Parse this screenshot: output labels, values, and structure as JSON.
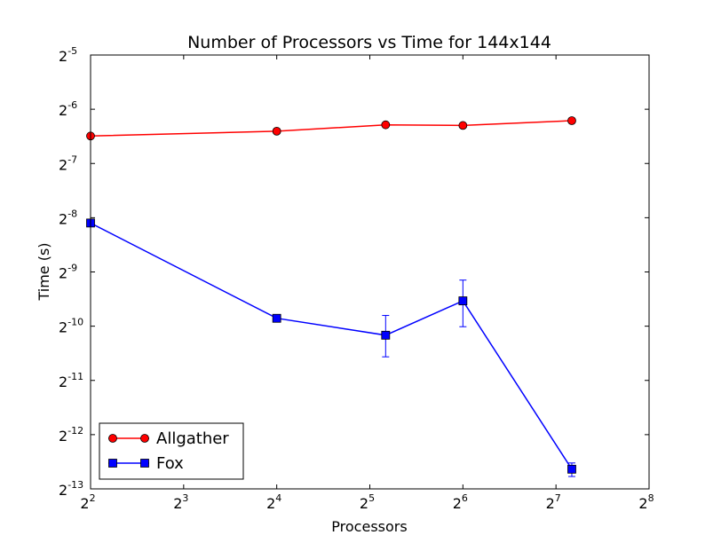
{
  "chart_data": {
    "type": "line",
    "title": "Number of Processors vs Time for 144x144",
    "xlabel": "Processors",
    "ylabel": "Time (s)",
    "x_scale": "log2",
    "y_scale": "log2",
    "xlim": [
      4,
      256
    ],
    "ylim": [
      0.0001220703125,
      0.03125
    ],
    "x_ticks": [
      {
        "value": 4,
        "base": "2",
        "exp": "2"
      },
      {
        "value": 8,
        "base": "2",
        "exp": "3"
      },
      {
        "value": 16,
        "base": "2",
        "exp": "4"
      },
      {
        "value": 32,
        "base": "2",
        "exp": "5"
      },
      {
        "value": 64,
        "base": "2",
        "exp": "6"
      },
      {
        "value": 128,
        "base": "2",
        "exp": "7"
      },
      {
        "value": 256,
        "base": "2",
        "exp": "8"
      }
    ],
    "y_ticks": [
      {
        "value": 0.03125,
        "base": "2",
        "exp": "-5"
      },
      {
        "value": 0.015625,
        "base": "2",
        "exp": "-6"
      },
      {
        "value": 0.0078125,
        "base": "2",
        "exp": "-7"
      },
      {
        "value": 0.00390625,
        "base": "2",
        "exp": "-8"
      },
      {
        "value": 0.001953125,
        "base": "2",
        "exp": "-9"
      },
      {
        "value": 0.0009765625,
        "base": "2",
        "exp": "-10"
      },
      {
        "value": 0.00048828125,
        "base": "2",
        "exp": "-11"
      },
      {
        "value": 0.000244140625,
        "base": "2",
        "exp": "-12"
      },
      {
        "value": 0.0001220703125,
        "base": "2",
        "exp": "-13"
      }
    ],
    "grid": false,
    "legend_position": "bottom-left",
    "x": [
      4,
      16,
      36,
      64,
      144
    ],
    "series": [
      {
        "name": "Allgather",
        "color": "#ff0000",
        "marker": "circle",
        "values": [
          0.0111,
          0.0118,
          0.0128,
          0.0127,
          0.0135
        ],
        "err_low": [
          0.0111,
          0.0118,
          0.0128,
          0.0127,
          0.0135
        ],
        "err_high": [
          0.0111,
          0.0118,
          0.0128,
          0.0127,
          0.0135
        ]
      },
      {
        "name": "Fox",
        "color": "#0000ff",
        "marker": "square",
        "values": [
          0.00365,
          0.00108,
          0.00087,
          0.00135,
          0.000157
        ],
        "err_low": [
          0.00365,
          0.00108,
          0.00066,
          0.00097,
          0.000143
        ],
        "err_high": [
          0.00365,
          0.00108,
          0.00112,
          0.00176,
          0.00017
        ]
      }
    ]
  }
}
